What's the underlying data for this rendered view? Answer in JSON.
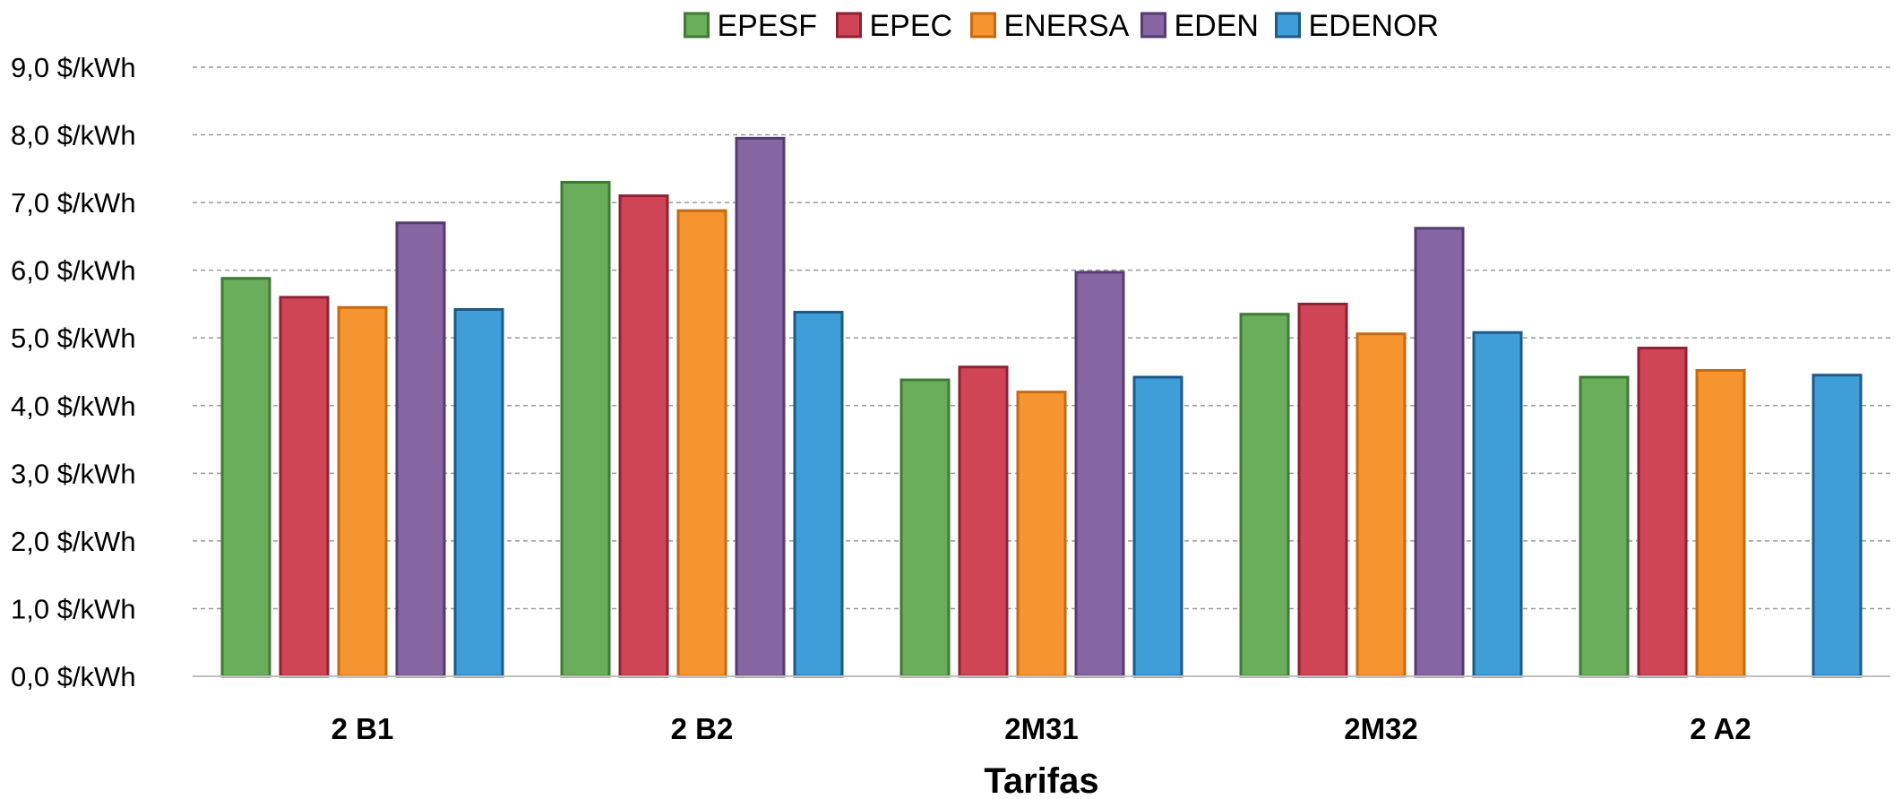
{
  "chart_data": {
    "type": "bar",
    "xlabel": "Tarifas",
    "ylabel": "",
    "y_unit": "$/kWh",
    "ylim": [
      0,
      9
    ],
    "y_ticks": [
      0,
      1,
      2,
      3,
      4,
      5,
      6,
      7,
      8,
      9
    ],
    "y_tick_labels": [
      "0,0  $/kWh",
      "1,0  $/kWh",
      "2,0  $/kWh",
      "3,0  $/kWh",
      "4,0  $/kWh",
      "5,0  $/kWh",
      "6,0  $/kWh",
      "7,0  $/kWh",
      "8,0  $/kWh",
      "9,0  $/kWh"
    ],
    "grid": true,
    "legend_position": "top",
    "categories": [
      "2 B1",
      "2 B2",
      "2M31",
      "2M32",
      "2 A2"
    ],
    "series": [
      {
        "name": "EPESF",
        "color": "#6aad5b",
        "stroke": "#3f7a34",
        "values": [
          5.88,
          7.3,
          4.38,
          5.35,
          4.42
        ]
      },
      {
        "name": "EPEC",
        "color": "#cf4556",
        "stroke": "#8e2233",
        "values": [
          5.6,
          7.1,
          4.57,
          5.5,
          4.85
        ]
      },
      {
        "name": "ENERSA",
        "color": "#f6952f",
        "stroke": "#c46a12",
        "values": [
          5.45,
          6.88,
          4.2,
          5.06,
          4.52
        ]
      },
      {
        "name": "EDEN",
        "color": "#8566a3",
        "stroke": "#553b70",
        "values": [
          6.7,
          7.95,
          5.97,
          6.62,
          null
        ]
      },
      {
        "name": "EDENOR",
        "color": "#3f9dd8",
        "stroke": "#1d5a87",
        "values": [
          5.42,
          5.38,
          4.42,
          5.08,
          4.45
        ]
      }
    ]
  }
}
